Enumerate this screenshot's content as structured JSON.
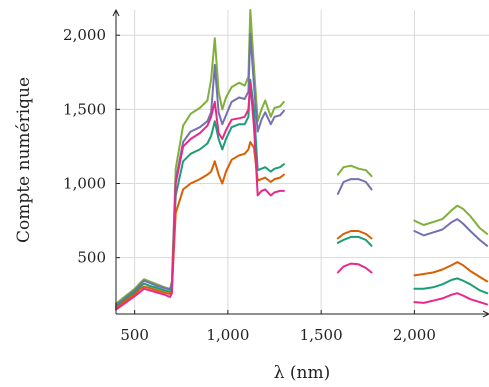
{
  "chart_data": {
    "type": "line",
    "xlabel": "λ (nm)",
    "ylabel": "Compte numérique",
    "xlim": [
      400,
      2400
    ],
    "ylim": [
      120,
      2170
    ],
    "grid": true,
    "legend": "none",
    "xticks": [
      500,
      1000,
      1500,
      2000
    ],
    "xtick_labels": [
      "500",
      "1,000",
      "1,500",
      "2,000"
    ],
    "yticks": [
      500,
      1000,
      1500,
      2000
    ],
    "ytick_labels": [
      "500",
      "1,000",
      "1,500",
      "2,000"
    ],
    "gaps": [
      [
        1310,
        1570
      ],
      [
        1780,
        1990
      ]
    ],
    "series": [
      {
        "color": "#7fb03a",
        "points": [
          [
            400,
            190
          ],
          [
            450,
            240
          ],
          [
            500,
            290
          ],
          [
            530,
            330
          ],
          [
            550,
            355
          ],
          [
            580,
            340
          ],
          [
            620,
            320
          ],
          [
            660,
            300
          ],
          [
            690,
            290
          ],
          [
            700,
            340
          ],
          [
            720,
            1100
          ],
          [
            760,
            1390
          ],
          [
            800,
            1470
          ],
          [
            850,
            1510
          ],
          [
            890,
            1560
          ],
          [
            910,
            1700
          ],
          [
            930,
            1980
          ],
          [
            950,
            1620
          ],
          [
            970,
            1500
          ],
          [
            990,
            1580
          ],
          [
            1020,
            1650
          ],
          [
            1060,
            1680
          ],
          [
            1090,
            1660
          ],
          [
            1110,
            1720
          ],
          [
            1120,
            2170
          ],
          [
            1140,
            1780
          ],
          [
            1160,
            1420
          ],
          [
            1180,
            1500
          ],
          [
            1200,
            1560
          ],
          [
            1230,
            1450
          ],
          [
            1250,
            1510
          ],
          [
            1280,
            1520
          ],
          [
            1300,
            1550
          ],
          [
            1590,
            1060
          ],
          [
            1620,
            1110
          ],
          [
            1660,
            1120
          ],
          [
            1700,
            1100
          ],
          [
            1740,
            1090
          ],
          [
            1770,
            1050
          ],
          [
            2000,
            750
          ],
          [
            2050,
            720
          ],
          [
            2100,
            740
          ],
          [
            2150,
            760
          ],
          [
            2200,
            820
          ],
          [
            2230,
            850
          ],
          [
            2260,
            830
          ],
          [
            2300,
            780
          ],
          [
            2350,
            700
          ],
          [
            2390,
            660
          ]
        ]
      },
      {
        "color": "#7570b3",
        "points": [
          [
            400,
            180
          ],
          [
            450,
            230
          ],
          [
            500,
            280
          ],
          [
            530,
            320
          ],
          [
            550,
            345
          ],
          [
            580,
            330
          ],
          [
            620,
            310
          ],
          [
            660,
            295
          ],
          [
            690,
            285
          ],
          [
            700,
            330
          ],
          [
            720,
            1020
          ],
          [
            760,
            1280
          ],
          [
            800,
            1350
          ],
          [
            850,
            1380
          ],
          [
            890,
            1420
          ],
          [
            910,
            1480
          ],
          [
            930,
            1800
          ],
          [
            950,
            1480
          ],
          [
            970,
            1400
          ],
          [
            990,
            1460
          ],
          [
            1020,
            1550
          ],
          [
            1060,
            1580
          ],
          [
            1090,
            1570
          ],
          [
            1110,
            1620
          ],
          [
            1120,
            2010
          ],
          [
            1140,
            1660
          ],
          [
            1160,
            1350
          ],
          [
            1180,
            1430
          ],
          [
            1200,
            1480
          ],
          [
            1230,
            1400
          ],
          [
            1250,
            1450
          ],
          [
            1280,
            1460
          ],
          [
            1300,
            1490
          ],
          [
            1590,
            930
          ],
          [
            1620,
            1010
          ],
          [
            1660,
            1030
          ],
          [
            1700,
            1030
          ],
          [
            1740,
            1010
          ],
          [
            1770,
            960
          ],
          [
            2000,
            680
          ],
          [
            2050,
            650
          ],
          [
            2100,
            670
          ],
          [
            2150,
            690
          ],
          [
            2200,
            740
          ],
          [
            2230,
            760
          ],
          [
            2260,
            730
          ],
          [
            2300,
            680
          ],
          [
            2350,
            620
          ],
          [
            2390,
            580
          ]
        ]
      },
      {
        "color": "#1b9e77",
        "points": [
          [
            400,
            170
          ],
          [
            450,
            220
          ],
          [
            500,
            270
          ],
          [
            530,
            305
          ],
          [
            550,
            325
          ],
          [
            580,
            310
          ],
          [
            620,
            295
          ],
          [
            660,
            280
          ],
          [
            690,
            270
          ],
          [
            700,
            300
          ],
          [
            720,
            920
          ],
          [
            760,
            1150
          ],
          [
            800,
            1200
          ],
          [
            850,
            1230
          ],
          [
            890,
            1270
          ],
          [
            910,
            1320
          ],
          [
            930,
            1420
          ],
          [
            950,
            1300
          ],
          [
            970,
            1230
          ],
          [
            990,
            1300
          ],
          [
            1020,
            1380
          ],
          [
            1060,
            1400
          ],
          [
            1090,
            1400
          ],
          [
            1110,
            1450
          ],
          [
            1120,
            1700
          ],
          [
            1140,
            1500
          ],
          [
            1160,
            1090
          ],
          [
            1180,
            1100
          ],
          [
            1200,
            1110
          ],
          [
            1230,
            1080
          ],
          [
            1250,
            1100
          ],
          [
            1280,
            1110
          ],
          [
            1300,
            1130
          ],
          [
            1590,
            600
          ],
          [
            1620,
            620
          ],
          [
            1660,
            640
          ],
          [
            1700,
            640
          ],
          [
            1740,
            620
          ],
          [
            1770,
            580
          ],
          [
            2000,
            290
          ],
          [
            2050,
            290
          ],
          [
            2100,
            300
          ],
          [
            2150,
            320
          ],
          [
            2200,
            350
          ],
          [
            2230,
            360
          ],
          [
            2260,
            345
          ],
          [
            2300,
            320
          ],
          [
            2350,
            280
          ],
          [
            2390,
            260
          ]
        ]
      },
      {
        "color": "#d95f02",
        "points": [
          [
            400,
            160
          ],
          [
            450,
            210
          ],
          [
            500,
            255
          ],
          [
            530,
            290
          ],
          [
            550,
            305
          ],
          [
            580,
            295
          ],
          [
            620,
            280
          ],
          [
            660,
            265
          ],
          [
            690,
            255
          ],
          [
            700,
            280
          ],
          [
            720,
            800
          ],
          [
            760,
            960
          ],
          [
            800,
            1000
          ],
          [
            850,
            1030
          ],
          [
            890,
            1060
          ],
          [
            910,
            1080
          ],
          [
            930,
            1150
          ],
          [
            950,
            1060
          ],
          [
            970,
            1000
          ],
          [
            990,
            1080
          ],
          [
            1020,
            1160
          ],
          [
            1060,
            1190
          ],
          [
            1090,
            1200
          ],
          [
            1110,
            1230
          ],
          [
            1120,
            1280
          ],
          [
            1140,
            1240
          ],
          [
            1160,
            1020
          ],
          [
            1180,
            1030
          ],
          [
            1200,
            1040
          ],
          [
            1230,
            1010
          ],
          [
            1250,
            1030
          ],
          [
            1280,
            1040
          ],
          [
            1300,
            1060
          ],
          [
            1590,
            630
          ],
          [
            1620,
            660
          ],
          [
            1660,
            680
          ],
          [
            1700,
            680
          ],
          [
            1740,
            660
          ],
          [
            1770,
            630
          ],
          [
            2000,
            380
          ],
          [
            2050,
            390
          ],
          [
            2100,
            400
          ],
          [
            2150,
            420
          ],
          [
            2200,
            450
          ],
          [
            2230,
            470
          ],
          [
            2260,
            450
          ],
          [
            2300,
            410
          ],
          [
            2350,
            370
          ],
          [
            2390,
            340
          ]
        ]
      },
      {
        "color": "#e7298a",
        "points": [
          [
            400,
            150
          ],
          [
            450,
            195
          ],
          [
            500,
            240
          ],
          [
            530,
            270
          ],
          [
            550,
            290
          ],
          [
            580,
            280
          ],
          [
            620,
            265
          ],
          [
            660,
            250
          ],
          [
            690,
            235
          ],
          [
            700,
            260
          ],
          [
            720,
            1000
          ],
          [
            760,
            1250
          ],
          [
            800,
            1300
          ],
          [
            850,
            1340
          ],
          [
            890,
            1390
          ],
          [
            910,
            1450
          ],
          [
            930,
            1550
          ],
          [
            950,
            1340
          ],
          [
            970,
            1300
          ],
          [
            990,
            1360
          ],
          [
            1020,
            1430
          ],
          [
            1060,
            1440
          ],
          [
            1090,
            1450
          ],
          [
            1110,
            1500
          ],
          [
            1120,
            1680
          ],
          [
            1140,
            1380
          ],
          [
            1160,
            920
          ],
          [
            1180,
            950
          ],
          [
            1200,
            960
          ],
          [
            1230,
            920
          ],
          [
            1250,
            940
          ],
          [
            1280,
            950
          ],
          [
            1300,
            950
          ],
          [
            1590,
            400
          ],
          [
            1620,
            440
          ],
          [
            1660,
            460
          ],
          [
            1700,
            455
          ],
          [
            1740,
            430
          ],
          [
            1770,
            400
          ],
          [
            2000,
            200
          ],
          [
            2050,
            195
          ],
          [
            2100,
            210
          ],
          [
            2150,
            225
          ],
          [
            2200,
            250
          ],
          [
            2230,
            260
          ],
          [
            2260,
            245
          ],
          [
            2300,
            220
          ],
          [
            2350,
            200
          ],
          [
            2390,
            185
          ]
        ]
      }
    ]
  }
}
